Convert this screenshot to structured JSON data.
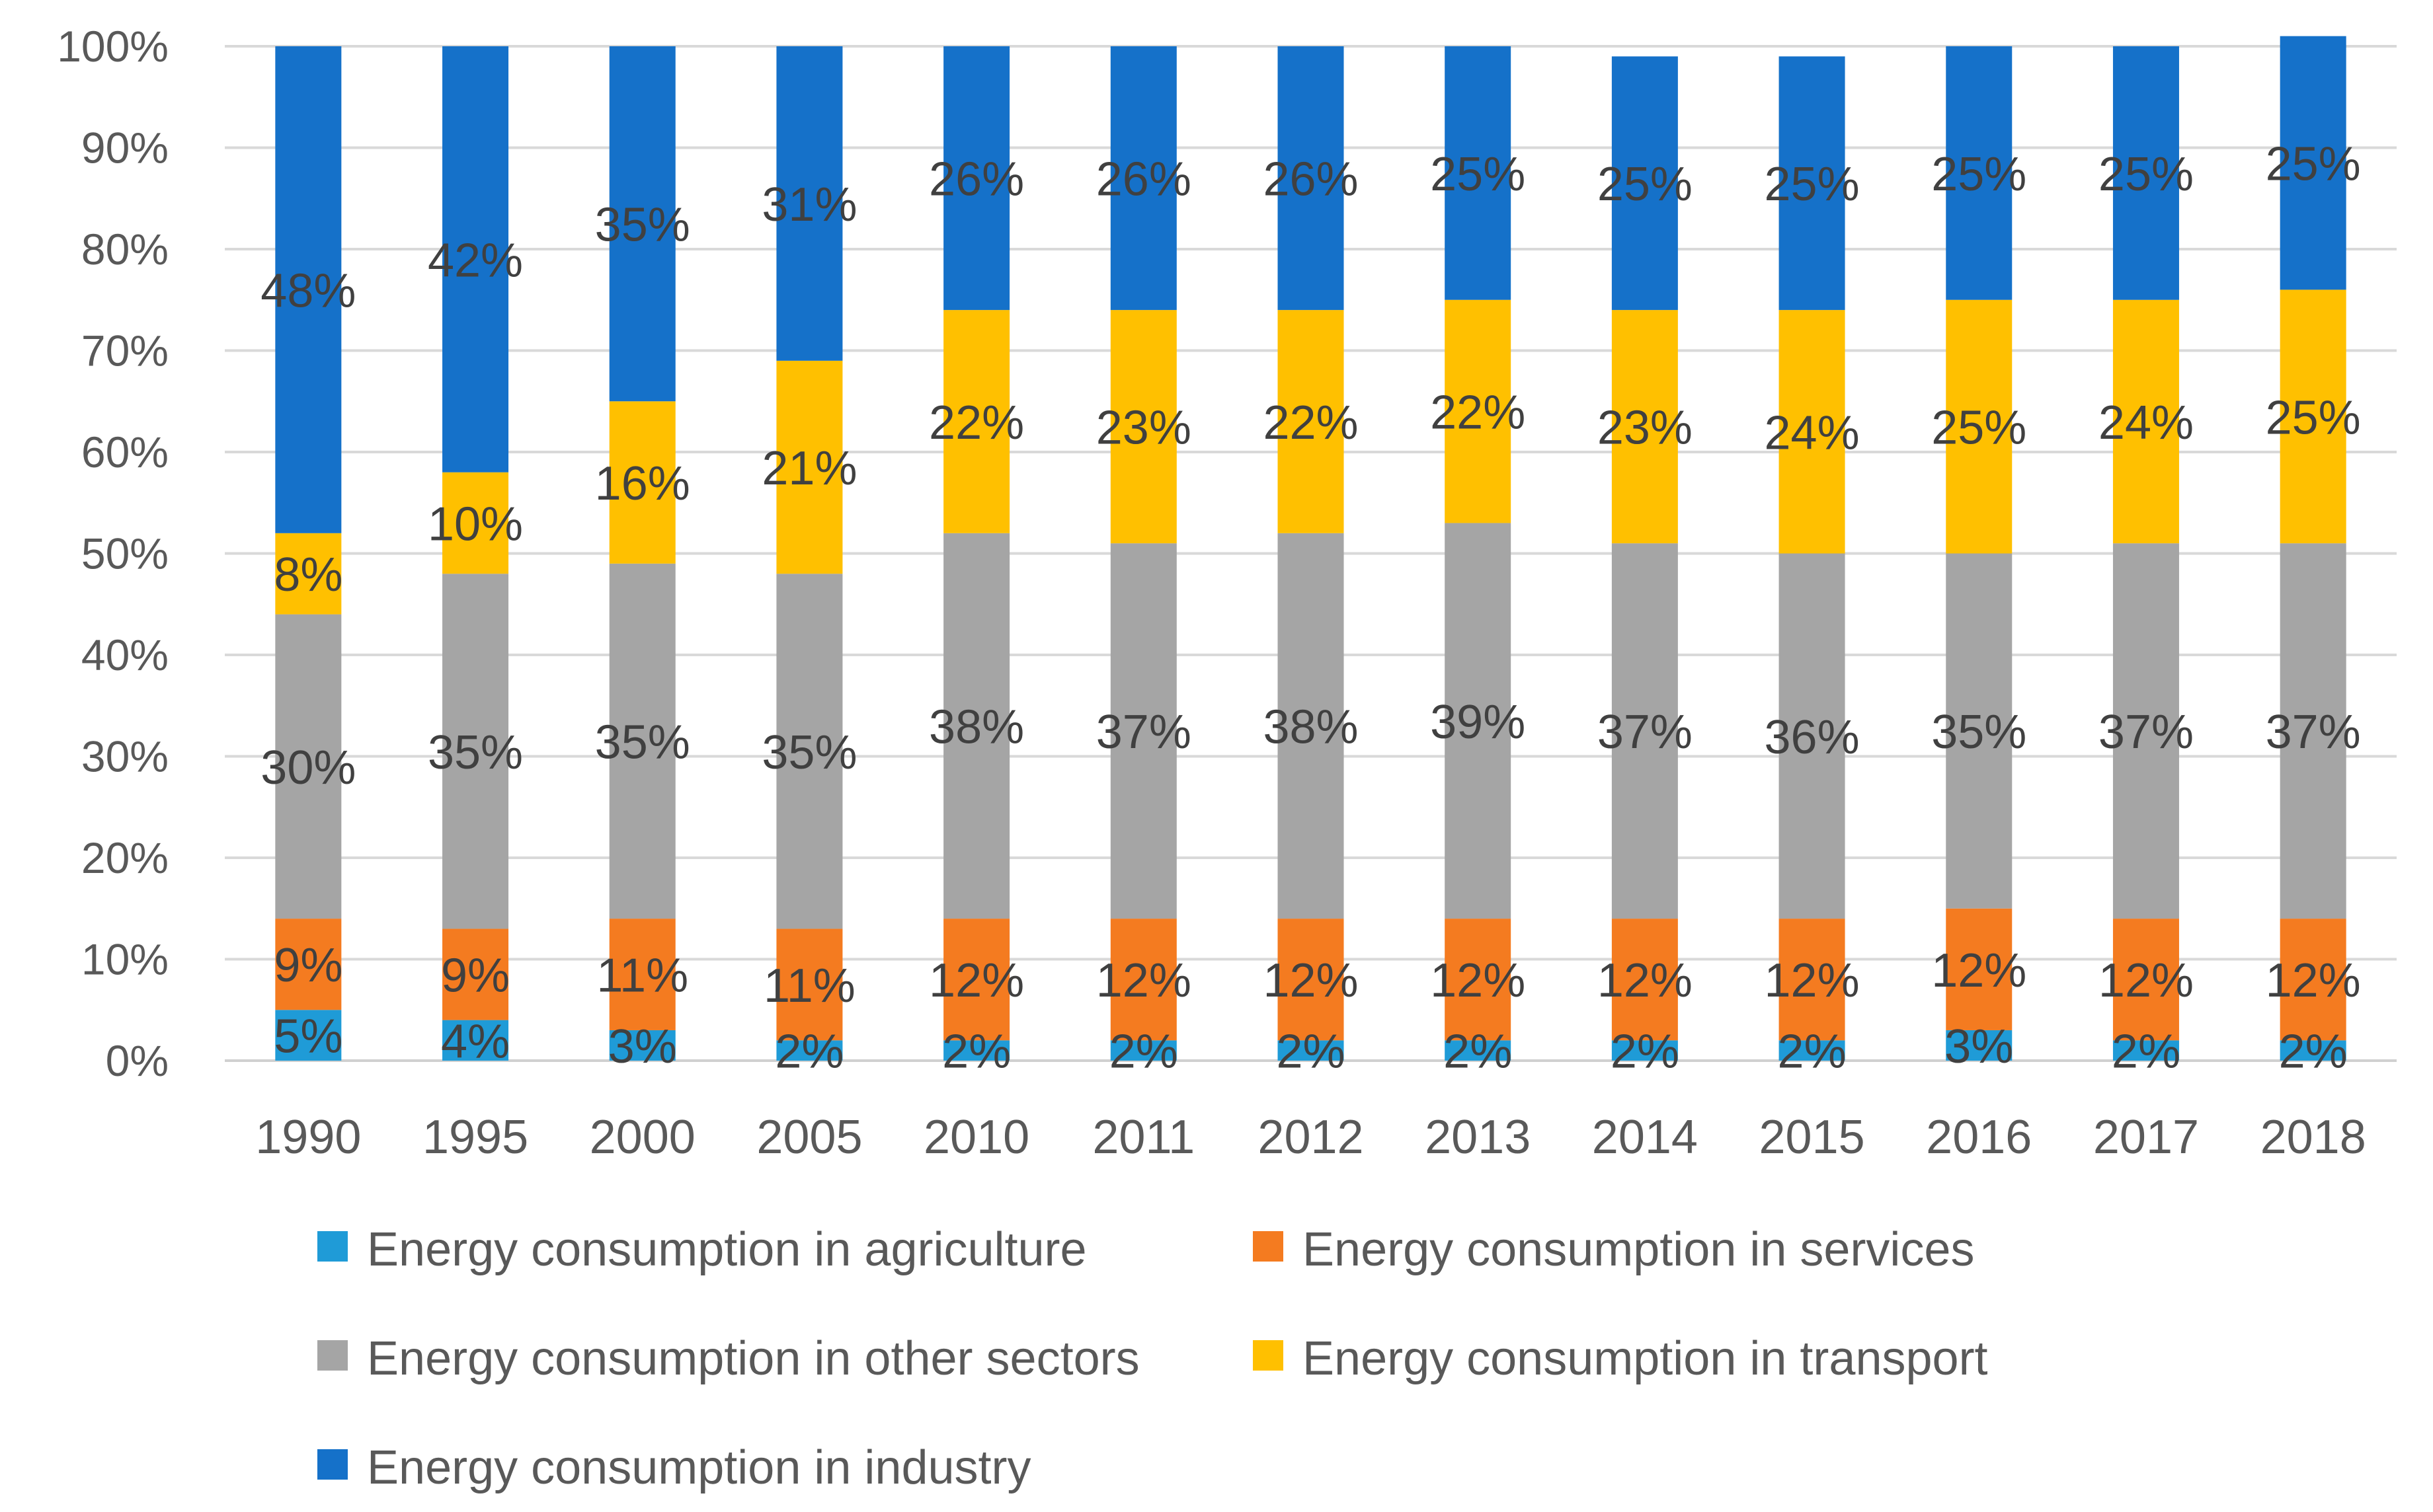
{
  "chart_data": {
    "type": "bar",
    "stacked": true,
    "percent": true,
    "categories": [
      "1990",
      "1995",
      "2000",
      "2005",
      "2010",
      "2011",
      "2012",
      "2013",
      "2014",
      "2015",
      "2016",
      "2017",
      "2018"
    ],
    "y_ticks": [
      "0%",
      "10%",
      "20%",
      "30%",
      "40%",
      "50%",
      "60%",
      "70%",
      "80%",
      "90%",
      "100%"
    ],
    "ylim": [
      0,
      100
    ],
    "grid": true,
    "legend_position": "bottom",
    "series": [
      {
        "name": "Energy consumption in agriculture",
        "color": "#1F9BD7",
        "values": [
          5,
          4,
          3,
          2,
          2,
          2,
          2,
          2,
          2,
          2,
          3,
          2,
          2
        ],
        "labels": [
          "5%",
          "4%",
          "3%",
          "2%",
          "2%",
          "2%",
          "2%",
          "2%",
          "2%",
          "2%",
          "3%",
          "2%",
          "2%"
        ]
      },
      {
        "name": "Energy consumption in services",
        "color": "#F47B20",
        "values": [
          9,
          9,
          11,
          11,
          12,
          12,
          12,
          12,
          12,
          12,
          12,
          12,
          12
        ],
        "labels": [
          "9%",
          "9%",
          "11%",
          "11%",
          "12%",
          "12%",
          "12%",
          "12%",
          "12%",
          "12%",
          "12%",
          "12%",
          "12%"
        ]
      },
      {
        "name": "Energy consumption in other sectors",
        "color": "#A5A5A5",
        "values": [
          30,
          35,
          35,
          35,
          38,
          37,
          38,
          39,
          37,
          36,
          35,
          37,
          37
        ],
        "labels": [
          "30%",
          "35%",
          "35%",
          "35%",
          "38%",
          "37%",
          "38%",
          "39%",
          "37%",
          "36%",
          "35%",
          "37%",
          "37%"
        ]
      },
      {
        "name": "Energy consumption in transport",
        "color": "#FFC000",
        "values": [
          8,
          10,
          16,
          21,
          22,
          23,
          22,
          22,
          23,
          24,
          25,
          24,
          25
        ],
        "labels": [
          "8%",
          "10%",
          "16%",
          "21%",
          "22%",
          "23%",
          "22%",
          "22%",
          "23%",
          "24%",
          "25%",
          "24%",
          "25%"
        ]
      },
      {
        "name": "Energy consumption in industry",
        "color": "#1571C9",
        "values": [
          48,
          42,
          35,
          31,
          26,
          26,
          26,
          25,
          25,
          25,
          25,
          25,
          25
        ],
        "labels": [
          "48%",
          "42%",
          "35%",
          "31%",
          "26%",
          "26%",
          "26%",
          "25%",
          "25%",
          "25%",
          "25%",
          "25%",
          "25%"
        ]
      }
    ]
  }
}
